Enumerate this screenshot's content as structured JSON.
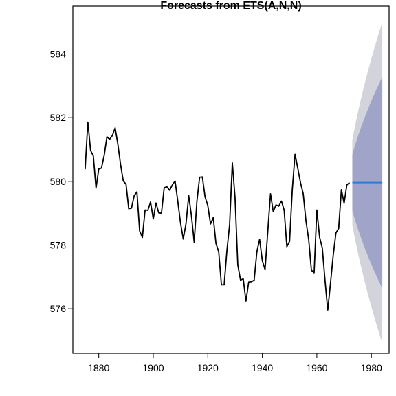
{
  "chart_data": {
    "type": "line",
    "title": "Forecasts from ETS(A,N,N)",
    "xlabel": "",
    "ylabel": "",
    "xlim": [
      1870.5,
      1986.5
    ],
    "ylim": [
      574.6,
      585.5
    ],
    "x_ticks": [
      1880,
      1900,
      1920,
      1940,
      1960,
      1980
    ],
    "y_ticks": [
      576,
      578,
      580,
      582,
      584
    ],
    "series": [
      {
        "role": "observed",
        "color": "#000000",
        "x_start": 1875,
        "x_step": 1,
        "values": [
          580.38,
          581.86,
          580.97,
          580.8,
          579.79,
          580.39,
          580.42,
          580.82,
          581.4,
          581.32,
          581.44,
          581.68,
          581.17,
          580.53,
          580.01,
          579.91,
          579.14,
          579.16,
          579.55,
          579.67,
          578.44,
          578.24,
          579.1,
          579.09,
          579.35,
          578.82,
          579.32,
          579.01,
          579.0,
          579.8,
          579.83,
          579.72,
          579.89,
          580.01,
          579.37,
          578.69,
          578.19,
          578.67,
          579.55,
          578.92,
          578.09,
          579.37,
          580.13,
          580.14,
          579.51,
          579.24,
          578.66,
          578.86,
          578.05,
          577.79,
          576.75,
          576.75,
          577.82,
          578.64,
          580.58,
          579.48,
          577.38,
          576.9,
          576.94,
          576.24,
          576.84,
          576.85,
          576.9,
          577.79,
          578.18,
          577.51,
          577.23,
          578.42,
          579.61,
          579.05,
          579.26,
          579.22,
          579.38,
          579.1,
          577.95,
          578.12,
          579.75,
          580.85,
          580.41,
          579.96,
          579.61,
          578.76,
          578.18,
          577.21,
          577.13,
          579.1,
          578.25,
          577.91,
          576.89,
          575.96,
          576.8,
          577.68,
          578.38,
          578.52,
          579.74,
          579.31,
          579.89,
          579.96
        ]
      },
      {
        "role": "forecast",
        "color": "#2b7bd6",
        "x_start": 1973,
        "x_end": 1984,
        "value": 579.96
      }
    ],
    "intervals": [
      {
        "level": "95%",
        "color": "#d3d3db",
        "x_start": 1973,
        "x_end": 1984,
        "lower_start": 578.62,
        "upper_start": 581.3,
        "lower_end": 574.92,
        "upper_end": 585.0
      },
      {
        "level": "80%",
        "color": "#a0a4c8",
        "x_start": 1973,
        "x_end": 1984,
        "lower_start": 579.08,
        "upper_start": 580.84,
        "lower_end": 576.64,
        "upper_end": 583.28
      }
    ]
  }
}
